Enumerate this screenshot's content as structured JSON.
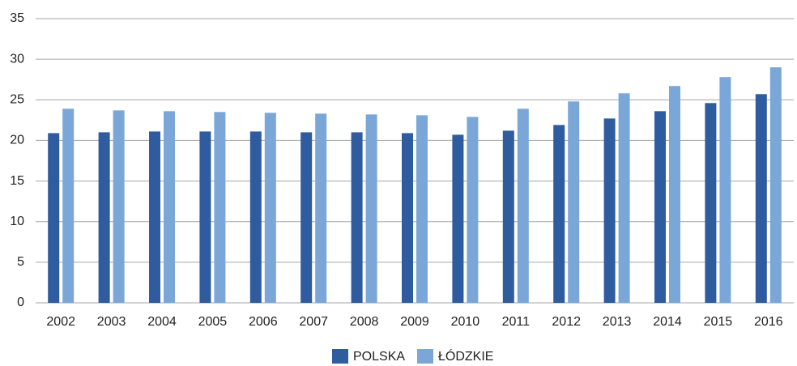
{
  "chart_data": {
    "type": "bar",
    "categories": [
      "2002",
      "2003",
      "2004",
      "2005",
      "2006",
      "2007",
      "2008",
      "2009",
      "2010",
      "2011",
      "2012",
      "2013",
      "2014",
      "2015",
      "2016"
    ],
    "series": [
      {
        "name": "POLSKA",
        "color": "#2e5c9e",
        "values": [
          20.9,
          21.0,
          21.1,
          21.1,
          21.1,
          21.0,
          21.0,
          20.9,
          20.7,
          21.2,
          21.9,
          22.7,
          23.6,
          24.6,
          25.7
        ]
      },
      {
        "name": "ŁÓDZKIE",
        "color": "#7aa7d8",
        "values": [
          23.9,
          23.7,
          23.6,
          23.5,
          23.4,
          23.3,
          23.2,
          23.1,
          22.9,
          23.9,
          24.8,
          25.8,
          26.7,
          27.8,
          29.0
        ]
      }
    ],
    "ylim": [
      0,
      35
    ],
    "yticks": [
      0,
      5,
      10,
      15,
      20,
      25,
      30,
      35
    ],
    "grid": true,
    "legend": "bottom"
  }
}
